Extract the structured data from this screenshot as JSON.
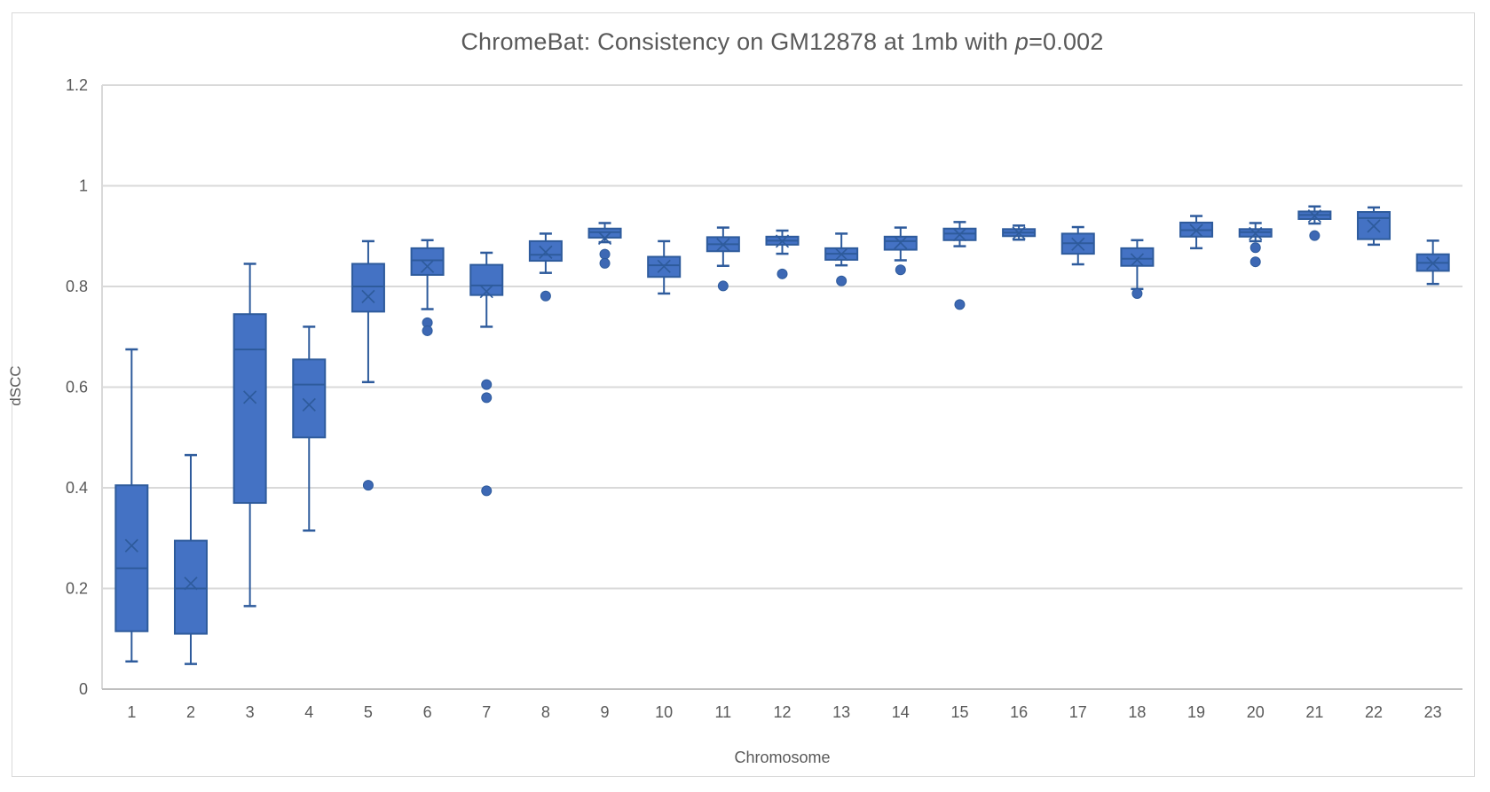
{
  "title": {
    "prefix": "ChromeBat: Consistency on GM12878 at 1mb with ",
    "p": "p",
    "suffix": "=0.002"
  },
  "chart_data": {
    "type": "boxplot",
    "title": "ChromeBat: Consistency on GM12878 at 1mb with p=0.002",
    "xlabel": "Chromosome",
    "ylabel": "dSCC",
    "ylim": [
      0,
      1.2
    ],
    "y_ticks": [
      "0",
      "0.2",
      "0.4",
      "0.6",
      "0.8",
      "1",
      "1.2"
    ],
    "y_tick_values": [
      0,
      0.2,
      0.4,
      0.6,
      0.8,
      1,
      1.2
    ],
    "grid": "horizontal",
    "legend": "none",
    "categories": [
      "1",
      "2",
      "3",
      "4",
      "5",
      "6",
      "7",
      "8",
      "9",
      "10",
      "11",
      "12",
      "13",
      "14",
      "15",
      "16",
      "17",
      "18",
      "19",
      "20",
      "21",
      "22",
      "23"
    ],
    "series": [
      {
        "chromosome": "1",
        "whisker_low": 0.055,
        "q1": 0.115,
        "median": 0.24,
        "q3": 0.405,
        "whisker_high": 0.675,
        "mean": 0.285,
        "outliers": []
      },
      {
        "chromosome": "2",
        "whisker_low": 0.05,
        "q1": 0.11,
        "median": 0.2,
        "q3": 0.295,
        "whisker_high": 0.465,
        "mean": 0.21,
        "outliers": []
      },
      {
        "chromosome": "3",
        "whisker_low": 0.165,
        "q1": 0.37,
        "median": 0.675,
        "q3": 0.745,
        "whisker_high": 0.845,
        "mean": 0.58,
        "outliers": []
      },
      {
        "chromosome": "4",
        "whisker_low": 0.315,
        "q1": 0.5,
        "median": 0.605,
        "q3": 0.655,
        "whisker_high": 0.72,
        "mean": 0.565,
        "outliers": []
      },
      {
        "chromosome": "5",
        "whisker_low": 0.61,
        "q1": 0.75,
        "median": 0.8,
        "q3": 0.845,
        "whisker_high": 0.89,
        "mean": 0.78,
        "outliers": [
          0.405
        ]
      },
      {
        "chromosome": "6",
        "whisker_low": 0.755,
        "q1": 0.823,
        "median": 0.852,
        "q3": 0.876,
        "whisker_high": 0.892,
        "mean": 0.84,
        "outliers": [
          0.728,
          0.712
        ]
      },
      {
        "chromosome": "7",
        "whisker_low": 0.72,
        "q1": 0.783,
        "median": 0.802,
        "q3": 0.843,
        "whisker_high": 0.867,
        "mean": 0.79,
        "outliers": [
          0.605,
          0.579,
          0.394
        ]
      },
      {
        "chromosome": "8",
        "whisker_low": 0.827,
        "q1": 0.851,
        "median": 0.863,
        "q3": 0.89,
        "whisker_high": 0.905,
        "mean": 0.868,
        "outliers": [
          0.781
        ]
      },
      {
        "chromosome": "9",
        "whisker_low": 0.888,
        "q1": 0.897,
        "median": 0.908,
        "q3": 0.915,
        "whisker_high": 0.926,
        "mean": 0.896,
        "outliers": [
          0.864,
          0.846
        ]
      },
      {
        "chromosome": "10",
        "whisker_low": 0.786,
        "q1": 0.819,
        "median": 0.842,
        "q3": 0.859,
        "whisker_high": 0.89,
        "mean": 0.84,
        "outliers": []
      },
      {
        "chromosome": "11",
        "whisker_low": 0.841,
        "q1": 0.87,
        "median": 0.884,
        "q3": 0.898,
        "whisker_high": 0.917,
        "mean": 0.883,
        "outliers": [
          0.801
        ]
      },
      {
        "chromosome": "12",
        "whisker_low": 0.865,
        "q1": 0.883,
        "median": 0.891,
        "q3": 0.899,
        "whisker_high": 0.911,
        "mean": 0.89,
        "outliers": [
          0.825
        ]
      },
      {
        "chromosome": "13",
        "whisker_low": 0.842,
        "q1": 0.853,
        "median": 0.865,
        "q3": 0.876,
        "whisker_high": 0.905,
        "mean": 0.864,
        "outliers": [
          0.811
        ]
      },
      {
        "chromosome": "14",
        "whisker_low": 0.852,
        "q1": 0.873,
        "median": 0.89,
        "q3": 0.899,
        "whisker_high": 0.917,
        "mean": 0.887,
        "outliers": [
          0.833
        ]
      },
      {
        "chromosome": "15",
        "whisker_low": 0.88,
        "q1": 0.892,
        "median": 0.905,
        "q3": 0.915,
        "whisker_high": 0.928,
        "mean": 0.903,
        "outliers": [
          0.764
        ]
      },
      {
        "chromosome": "16",
        "whisker_low": 0.893,
        "q1": 0.9,
        "median": 0.907,
        "q3": 0.914,
        "whisker_high": 0.921,
        "mean": 0.906,
        "outliers": []
      },
      {
        "chromosome": "17",
        "whisker_low": 0.844,
        "q1": 0.865,
        "median": 0.886,
        "q3": 0.905,
        "whisker_high": 0.918,
        "mean": 0.884,
        "outliers": []
      },
      {
        "chromosome": "18",
        "whisker_low": 0.795,
        "q1": 0.841,
        "median": 0.855,
        "q3": 0.876,
        "whisker_high": 0.892,
        "mean": 0.853,
        "outliers": [
          0.786
        ]
      },
      {
        "chromosome": "19",
        "whisker_low": 0.876,
        "q1": 0.899,
        "median": 0.912,
        "q3": 0.927,
        "whisker_high": 0.94,
        "mean": 0.911,
        "outliers": []
      },
      {
        "chromosome": "20",
        "whisker_low": 0.89,
        "q1": 0.899,
        "median": 0.908,
        "q3": 0.914,
        "whisker_high": 0.926,
        "mean": 0.905,
        "outliers": [
          0.877,
          0.849
        ]
      },
      {
        "chromosome": "21",
        "whisker_low": 0.925,
        "q1": 0.934,
        "median": 0.942,
        "q3": 0.949,
        "whisker_high": 0.959,
        "mean": 0.94,
        "outliers": [
          0.901
        ]
      },
      {
        "chromosome": "22",
        "whisker_low": 0.883,
        "q1": 0.894,
        "median": 0.936,
        "q3": 0.948,
        "whisker_high": 0.957,
        "mean": 0.92,
        "outliers": []
      },
      {
        "chromosome": "23",
        "whisker_low": 0.805,
        "q1": 0.831,
        "median": 0.847,
        "q3": 0.864,
        "whisker_high": 0.891,
        "mean": 0.846,
        "outliers": []
      }
    ],
    "colors": {
      "box_fill": "#4472c4",
      "box_stroke": "#2e5b9c",
      "mean_marker": "#2e5b9c",
      "outlier_fill": "#3d68b4",
      "gridline": "#d9d9d9",
      "axis_line": "#bfbfbf",
      "text": "#595959",
      "background": "#ffffff"
    }
  }
}
